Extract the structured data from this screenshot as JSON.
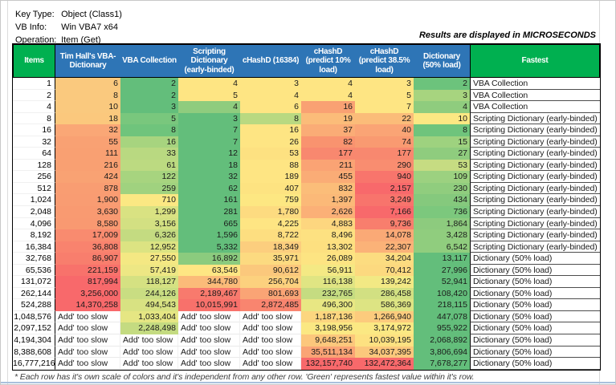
{
  "info": {
    "key_type_label": "Key Type:",
    "key_type_value": "Object (Class1)",
    "vb_info_label": "VB Info:",
    "vb_info_value": "Win VBA7 x64",
    "operation_label": "Operation:",
    "operation_value": "Item (Get)",
    "units_note": "Results are displayed in MICROSECONDS"
  },
  "colors": {
    "header_blue": "#2E75B6",
    "header_green": "#00B050",
    "scale_min_green": "#63BE7B",
    "scale_mid_yellow": "#FFEB84",
    "scale_max_red": "#F8696B"
  },
  "table": {
    "columns": [
      "Items",
      "Tim Hall's VBA-Dictionary",
      "VBA Collection",
      "Scripting Dictionary (early-binded)",
      "cHashD (16384)",
      "cHashD (predict 10% load)",
      "cHashD (predict 38.5% load)",
      "Dictionary (50% load)",
      "Fastest"
    ],
    "slow_text": "Add' too slow",
    "rows": [
      {
        "items": "1",
        "cells": [
          {
            "v": "6",
            "bg": "#FAC97E"
          },
          {
            "v": "2",
            "bg": "#63BE7B"
          },
          {
            "v": "4",
            "bg": "#FEE583"
          },
          {
            "v": "3",
            "bg": "#FEE583"
          },
          {
            "v": "4",
            "bg": "#FEE583"
          },
          {
            "v": "3",
            "bg": "#FEE583"
          },
          {
            "v": "2",
            "bg": "#6CC37C"
          }
        ],
        "fastest": "VBA Collection"
      },
      {
        "items": "2",
        "cells": [
          {
            "v": "8",
            "bg": "#FAC97E"
          },
          {
            "v": "2",
            "bg": "#63BE7B"
          },
          {
            "v": "5",
            "bg": "#FEE583"
          },
          {
            "v": "4",
            "bg": "#FEE583"
          },
          {
            "v": "4",
            "bg": "#FEE583"
          },
          {
            "v": "5",
            "bg": "#FEE583"
          },
          {
            "v": "3",
            "bg": "#A7D47F"
          }
        ],
        "fastest": "VBA Collection"
      },
      {
        "items": "4",
        "cells": [
          {
            "v": "10",
            "bg": "#FAC97E"
          },
          {
            "v": "3",
            "bg": "#63BE7B"
          },
          {
            "v": "4",
            "bg": "#8FCC7E"
          },
          {
            "v": "6",
            "bg": "#FEE583"
          },
          {
            "v": "16",
            "bg": "#F9A173"
          },
          {
            "v": "7",
            "bg": "#FEE583"
          },
          {
            "v": "4",
            "bg": "#8FCC7E"
          }
        ],
        "fastest": "VBA Collection"
      },
      {
        "items": "8",
        "cells": [
          {
            "v": "18",
            "bg": "#FBC87D"
          },
          {
            "v": "5",
            "bg": "#79C77D"
          },
          {
            "v": "3",
            "bg": "#63BE7B"
          },
          {
            "v": "8",
            "bg": "#B9D981"
          },
          {
            "v": "19",
            "bg": "#FBBC79"
          },
          {
            "v": "22",
            "bg": "#FBBC79"
          },
          {
            "v": "10",
            "bg": "#FCE883"
          }
        ],
        "fastest": "Scripting Dictionary (early-binded)"
      },
      {
        "items": "16",
        "cells": [
          {
            "v": "32",
            "bg": "#FAA776"
          },
          {
            "v": "8",
            "bg": "#6FC47C"
          },
          {
            "v": "7",
            "bg": "#63BE7B"
          },
          {
            "v": "16",
            "bg": "#FEE583"
          },
          {
            "v": "37",
            "bg": "#FAAC76"
          },
          {
            "v": "40",
            "bg": "#FAA475"
          },
          {
            "v": "8",
            "bg": "#6FC47C"
          }
        ],
        "fastest": "Scripting Dictionary (early-binded)"
      },
      {
        "items": "32",
        "cells": [
          {
            "v": "55",
            "bg": "#F9A173"
          },
          {
            "v": "16",
            "bg": "#A7D47F"
          },
          {
            "v": "7",
            "bg": "#63BE7B"
          },
          {
            "v": "26",
            "bg": "#FEE583"
          },
          {
            "v": "82",
            "bg": "#F9936F"
          },
          {
            "v": "74",
            "bg": "#F99A71"
          },
          {
            "v": "15",
            "bg": "#9ED27F"
          }
        ],
        "fastest": "Scripting Dictionary (early-binded)"
      },
      {
        "items": "64",
        "cells": [
          {
            "v": "111",
            "bg": "#F9A072"
          },
          {
            "v": "33",
            "bg": "#B9D981"
          },
          {
            "v": "12",
            "bg": "#63BE7B"
          },
          {
            "v": "53",
            "bg": "#FDE181"
          },
          {
            "v": "177",
            "bg": "#F8886F"
          },
          {
            "v": "177",
            "bg": "#F8886F"
          },
          {
            "v": "27",
            "bg": "#8FCC7E"
          }
        ],
        "fastest": "Scripting Dictionary (early-binded)"
      },
      {
        "items": "128",
        "cells": [
          {
            "v": "216",
            "bg": "#F9A072"
          },
          {
            "v": "61",
            "bg": "#BCDA81"
          },
          {
            "v": "18",
            "bg": "#63BE7B"
          },
          {
            "v": "88",
            "bg": "#FEE583"
          },
          {
            "v": "211",
            "bg": "#FAA374"
          },
          {
            "v": "290",
            "bg": "#F98D70"
          },
          {
            "v": "53",
            "bg": "#C6DC82"
          }
        ],
        "fastest": "Scripting Dictionary (early-binded)"
      },
      {
        "items": "256",
        "cells": [
          {
            "v": "424",
            "bg": "#F9A273"
          },
          {
            "v": "122",
            "bg": "#A7D47F"
          },
          {
            "v": "32",
            "bg": "#63BE7B"
          },
          {
            "v": "189",
            "bg": "#FEE583"
          },
          {
            "v": "455",
            "bg": "#FAAC76"
          },
          {
            "v": "940",
            "bg": "#F8756C"
          },
          {
            "v": "109",
            "bg": "#9CD180"
          }
        ],
        "fastest": "Scripting Dictionary (early-binded)"
      },
      {
        "items": "512",
        "cells": [
          {
            "v": "878",
            "bg": "#F99D72"
          },
          {
            "v": "259",
            "bg": "#A0D27F"
          },
          {
            "v": "62",
            "bg": "#63BE7B"
          },
          {
            "v": "407",
            "bg": "#FDE381"
          },
          {
            "v": "832",
            "bg": "#FBBD79"
          },
          {
            "v": "2,157",
            "bg": "#F8696B"
          },
          {
            "v": "230",
            "bg": "#90CD7E"
          }
        ],
        "fastest": "Scripting Dictionary (early-binded)"
      },
      {
        "items": "1,024",
        "cells": [
          {
            "v": "1,900",
            "bg": "#F99C72"
          },
          {
            "v": "710",
            "bg": "#FBE883"
          },
          {
            "v": "161",
            "bg": "#63BE7B"
          },
          {
            "v": "759",
            "bg": "#FDE782"
          },
          {
            "v": "1,397",
            "bg": "#FBB978"
          },
          {
            "v": "3,249",
            "bg": "#F8746C"
          },
          {
            "v": "434",
            "bg": "#85C97D"
          }
        ],
        "fastest": "Scripting Dictionary (early-binded)"
      },
      {
        "items": "2,048",
        "cells": [
          {
            "v": "3,630",
            "bg": "#F99A71"
          },
          {
            "v": "1,299",
            "bg": "#D9E282"
          },
          {
            "v": "281",
            "bg": "#63BE7B"
          },
          {
            "v": "1,780",
            "bg": "#FDDB80"
          },
          {
            "v": "2,626",
            "bg": "#FBB077"
          },
          {
            "v": "7,166",
            "bg": "#F8696B"
          },
          {
            "v": "736",
            "bg": "#7CC87D"
          }
        ],
        "fastest": "Scripting Dictionary (early-binded)"
      },
      {
        "items": "4,096",
        "cells": [
          {
            "v": "8,580",
            "bg": "#F99971"
          },
          {
            "v": "3,156",
            "bg": "#D3E082"
          },
          {
            "v": "665",
            "bg": "#63BE7B"
          },
          {
            "v": "4,225",
            "bg": "#FEE583"
          },
          {
            "v": "4,883",
            "bg": "#FDD67F"
          },
          {
            "v": "9,736",
            "bg": "#F87E6D"
          },
          {
            "v": "1,864",
            "bg": "#8DCB7E"
          }
        ],
        "fastest": "Scripting Dictionary (early-binded)"
      },
      {
        "items": "8,192",
        "cells": [
          {
            "v": "17,009",
            "bg": "#F98B6F"
          },
          {
            "v": "6,326",
            "bg": "#C4DB81"
          },
          {
            "v": "1,596",
            "bg": "#63BE7B"
          },
          {
            "v": "8,722",
            "bg": "#FDDE80"
          },
          {
            "v": "8,496",
            "bg": "#FDE181"
          },
          {
            "v": "14,078",
            "bg": "#FAA976"
          },
          {
            "v": "3,428",
            "bg": "#90CD7E"
          }
        ],
        "fastest": "Scripting Dictionary (early-binded)"
      },
      {
        "items": "16,384",
        "cells": [
          {
            "v": "36,808",
            "bg": "#F9836E"
          },
          {
            "v": "12,952",
            "bg": "#DCE382"
          },
          {
            "v": "5,332",
            "bg": "#63BE7B"
          },
          {
            "v": "18,349",
            "bg": "#FCCE7E"
          },
          {
            "v": "13,302",
            "bg": "#FDE080"
          },
          {
            "v": "22,307",
            "bg": "#FBB278"
          },
          {
            "v": "6,542",
            "bg": "#90CD7E"
          }
        ],
        "fastest": "Scripting Dictionary (early-binded)"
      },
      {
        "items": "32,768",
        "cells": [
          {
            "v": "86,907",
            "bg": "#F87E6D"
          },
          {
            "v": "27,550",
            "bg": "#F4E883"
          },
          {
            "v": "16,892",
            "bg": "#8BCB7E"
          },
          {
            "v": "35,971",
            "bg": "#FCDA80"
          },
          {
            "v": "26,089",
            "bg": "#FDE482"
          },
          {
            "v": "34,204",
            "bg": "#FCDC80"
          },
          {
            "v": "13,117",
            "bg": "#63BE7B"
          }
        ],
        "fastest": "Dictionary (50% load)"
      },
      {
        "items": "65,536",
        "cells": [
          {
            "v": "221,159",
            "bg": "#F8726B"
          },
          {
            "v": "57,419",
            "bg": "#EDE784"
          },
          {
            "v": "63,546",
            "bg": "#FEE683"
          },
          {
            "v": "90,612",
            "bg": "#FBC87C"
          },
          {
            "v": "56,911",
            "bg": "#F4E984"
          },
          {
            "v": "70,412",
            "bg": "#FCD97F"
          },
          {
            "v": "27,996",
            "bg": "#63BE7B"
          }
        ],
        "fastest": "Dictionary (50% load)"
      },
      {
        "items": "131,072",
        "cells": [
          {
            "v": "817,994",
            "bg": "#F8696B"
          },
          {
            "v": "118,127",
            "bg": "#D5E182"
          },
          {
            "v": "344,780",
            "bg": "#FBBB79"
          },
          {
            "v": "256,704",
            "bg": "#FCD17E"
          },
          {
            "v": "116,138",
            "bg": "#E0E583"
          },
          {
            "v": "139,242",
            "bg": "#F2E984"
          },
          {
            "v": "52,941",
            "bg": "#63BE7B"
          }
        ],
        "fastest": "Dictionary (50% load)"
      },
      {
        "items": "262,144",
        "cells": [
          {
            "v": "3,256,000",
            "bg": "#F8696B"
          },
          {
            "v": "244,126",
            "bg": "#C9DD82"
          },
          {
            "v": "2,189,467",
            "bg": "#F87A6D"
          },
          {
            "v": "801,693",
            "bg": "#FAA475"
          },
          {
            "v": "232,765",
            "bg": "#C5DC81"
          },
          {
            "v": "286,458",
            "bg": "#D2E082"
          },
          {
            "v": "108,420",
            "bg": "#63BE7B"
          }
        ],
        "fastest": "Dictionary (50% load)"
      },
      {
        "items": "524,288",
        "cells": [
          {
            "v": "14,370,258",
            "bg": "#F8696B"
          },
          {
            "v": "494,543",
            "bg": "#D8E282"
          },
          {
            "v": "10,015,991",
            "bg": "#F8716B"
          },
          {
            "v": "2,872,485",
            "bg": "#F9856F"
          },
          {
            "v": "496,300",
            "bg": "#E8E783"
          },
          {
            "v": "586,369",
            "bg": "#DDE483"
          },
          {
            "v": "218,115",
            "bg": "#63BE7B"
          }
        ],
        "fastest": "Dictionary (50% load)"
      },
      {
        "items": "1,048,576",
        "cells": [
          {
            "v": null
          },
          {
            "v": "1,033,404",
            "bg": "#E5E683"
          },
          {
            "v": null
          },
          {
            "v": null
          },
          {
            "v": "1,187,136",
            "bg": "#FCD67F"
          },
          {
            "v": "1,266,940",
            "bg": "#FCCB7D"
          },
          {
            "v": "447,078",
            "bg": "#63BE7B"
          }
        ],
        "fastest": "Dictionary (50% load)"
      },
      {
        "items": "2,097,152",
        "cells": [
          {
            "v": null
          },
          {
            "v": "2,248,498",
            "bg": "#C4DB81"
          },
          {
            "v": null
          },
          {
            "v": null
          },
          {
            "v": "3,198,956",
            "bg": "#FBE883"
          },
          {
            "v": "3,174,972",
            "bg": "#FBE883"
          },
          {
            "v": "955,922",
            "bg": "#63BE7B"
          }
        ],
        "fastest": "Dictionary (50% load)"
      },
      {
        "items": "4,194,304",
        "cells": [
          {
            "v": null
          },
          {
            "v": null
          },
          {
            "v": null
          },
          {
            "v": null
          },
          {
            "v": "9,648,251",
            "bg": "#FCC77C"
          },
          {
            "v": "10,039,195",
            "bg": "#FDE181"
          },
          {
            "v": "2,068,892",
            "bg": "#63BE7B"
          }
        ],
        "fastest": "Dictionary (50% load)"
      },
      {
        "items": "8,388,608",
        "cells": [
          {
            "v": null
          },
          {
            "v": null
          },
          {
            "v": null
          },
          {
            "v": null
          },
          {
            "v": "35,511,134",
            "bg": "#FAA475"
          },
          {
            "v": "34,037,395",
            "bg": "#FBC87C"
          },
          {
            "v": "3,806,694",
            "bg": "#63BE7B"
          }
        ],
        "fastest": "Dictionary (50% load)"
      },
      {
        "items": "16,777,216",
        "cells": [
          {
            "v": null
          },
          {
            "v": null
          },
          {
            "v": null
          },
          {
            "v": null
          },
          {
            "v": "132,157,740",
            "bg": "#F8696B"
          },
          {
            "v": "132,472,364",
            "bg": "#F8696B"
          },
          {
            "v": "7,678,277",
            "bg": "#63BE7B"
          }
        ],
        "fastest": "Dictionary (50% load)"
      }
    ]
  },
  "footnote": "* Each row has it's own scale of colors and it's independent from any other row. 'Green' represents fastest value within it's row."
}
